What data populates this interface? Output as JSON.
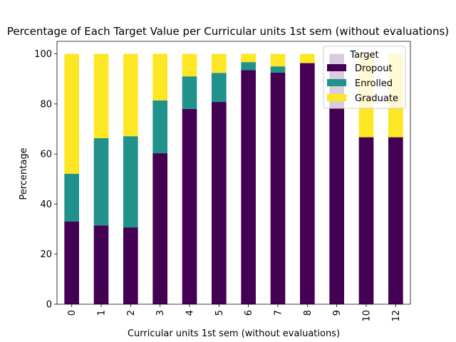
{
  "chart_data": {
    "type": "bar",
    "stacked": true,
    "title": "Percentage of Each Target Value per Curricular units 1st sem (without evaluations)",
    "xlabel": "Curricular units 1st sem (without evaluations)",
    "ylabel": "Percentage",
    "ylim": [
      0,
      105
    ],
    "yticks": [
      0,
      20,
      40,
      60,
      80,
      100
    ],
    "categories": [
      "0",
      "1",
      "2",
      "3",
      "4",
      "5",
      "6",
      "7",
      "8",
      "9",
      "10",
      "12"
    ],
    "series": [
      {
        "name": "Dropout",
        "color": "#440154",
        "values": [
          33.0,
          31.5,
          30.7,
          60.3,
          78.0,
          80.8,
          93.5,
          92.5,
          96.3,
          100.0,
          66.7,
          66.7
        ]
      },
      {
        "name": "Enrolled",
        "color": "#21918c",
        "values": [
          19.1,
          34.8,
          36.4,
          21.1,
          13.0,
          11.6,
          3.2,
          2.5,
          0.0,
          0.0,
          0.0,
          0.0
        ]
      },
      {
        "name": "Graduate",
        "color": "#fde725",
        "values": [
          47.9,
          33.7,
          32.9,
          18.6,
          9.0,
          7.6,
          3.3,
          5.0,
          3.7,
          0.0,
          33.3,
          33.3
        ]
      }
    ],
    "legend": {
      "title": "Target",
      "placement": "top-right"
    },
    "grid": false
  }
}
